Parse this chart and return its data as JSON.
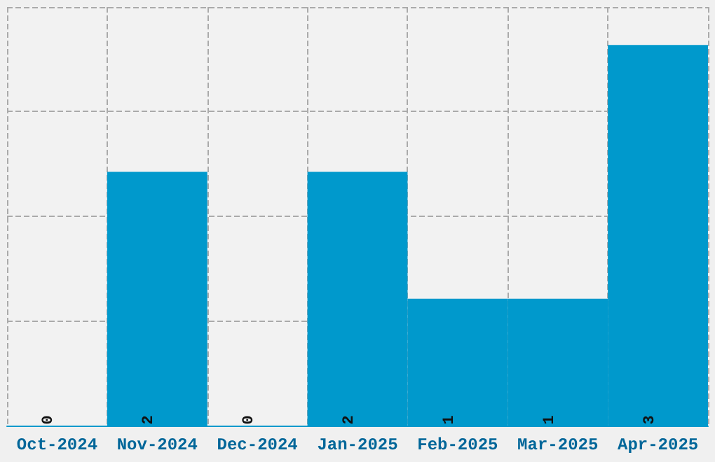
{
  "chart_data": {
    "type": "bar",
    "categories": [
      "Oct-2024",
      "Nov-2024",
      "Dec-2024",
      "Jan-2025",
      "Feb-2025",
      "Mar-2025",
      "Apr-2025"
    ],
    "values": [
      0,
      2,
      0,
      2,
      1,
      1,
      3
    ],
    "color": "#0099cc",
    "ylim": [
      0,
      3.3
    ],
    "yticks": [
      {
        "value": 0,
        "label": null
      },
      {
        "value": 0.825,
        "label": null
      },
      {
        "value": 1.65,
        "label": null
      },
      {
        "value": 2.475,
        "label": null
      },
      {
        "value": 3.3,
        "label": null
      }
    ],
    "tick_labels": "x",
    "grid": true,
    "data_labels": true
  }
}
